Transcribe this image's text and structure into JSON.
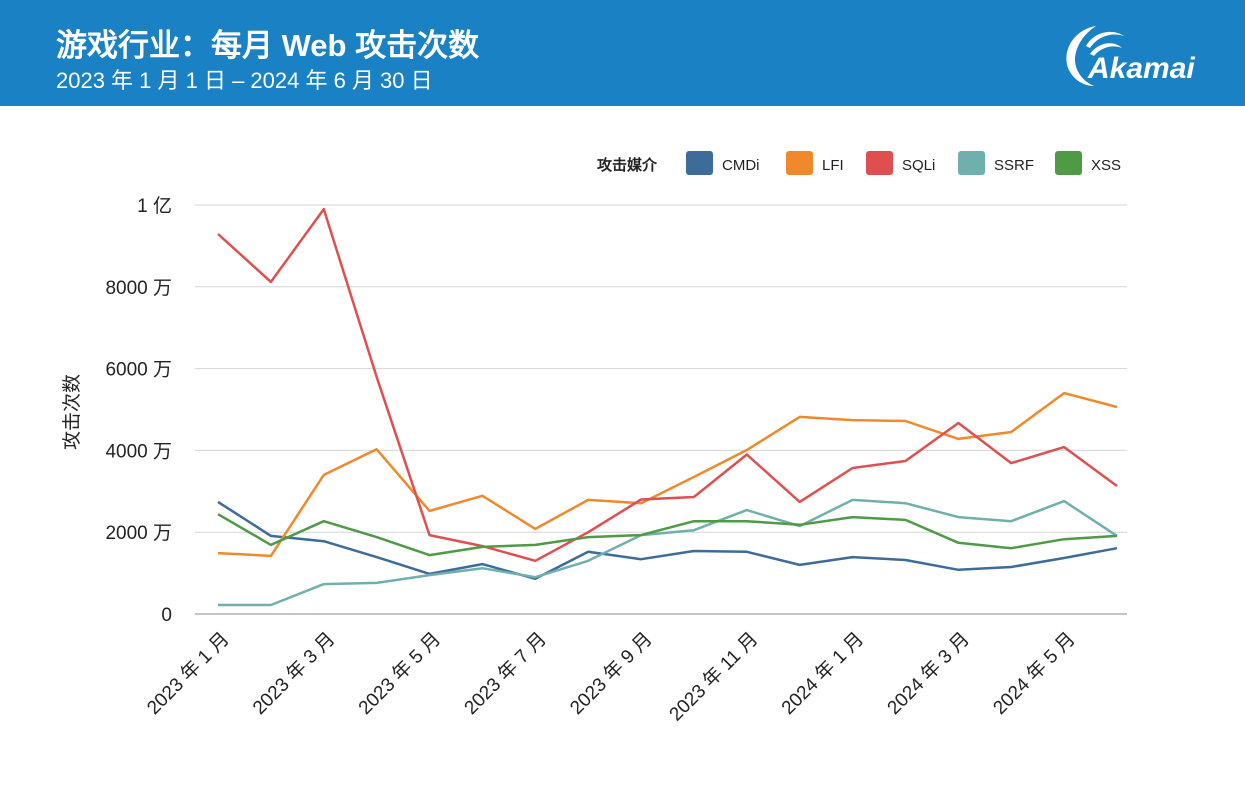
{
  "header": {
    "title": "游戏行业：每月 Web 攻击次数",
    "subtitle": "2023 年 1 月 1 日 – 2024 年 6 月 30 日",
    "logo_text": "Akamai",
    "bg_color": "#1a82c4"
  },
  "chart_data": {
    "type": "line",
    "title": "游戏行业：每月 Web 攻击次数",
    "ylabel": "攻击次数",
    "xlabel": "",
    "ylim": [
      0,
      100000000
    ],
    "yticks": [
      0,
      20000000,
      40000000,
      60000000,
      80000000,
      100000000
    ],
    "ytick_labels": [
      "0",
      "2000 万",
      "4000 万",
      "6000 万",
      "8000 万",
      "1 亿"
    ],
    "x": [
      "2023-01",
      "2023-02",
      "2023-03",
      "2023-04",
      "2023-05",
      "2023-06",
      "2023-07",
      "2023-08",
      "2023-09",
      "2023-10",
      "2023-11",
      "2023-12",
      "2024-01",
      "2024-02",
      "2024-03",
      "2024-04",
      "2024-05",
      "2024-06"
    ],
    "xtick_labels": [
      "2023 年 1 月",
      "",
      "2023 年 3 月",
      "",
      "2023 年 5 月",
      "",
      "2023 年 7 月",
      "",
      "2023 年 9 月",
      "",
      "2023 年 11 月",
      "",
      "2024 年 1 月",
      "",
      "2024 年 3 月",
      "",
      "2024 年 5 月",
      ""
    ],
    "legend_title": "攻击媒介",
    "legend_position": "top-right",
    "grid": true,
    "series": [
      {
        "name": "CMDi",
        "color": "#3d6b9a",
        "values": [
          27.4,
          19.1,
          17.8,
          13.9,
          9.8,
          12.2,
          8.6,
          15.2,
          13.4,
          15.4,
          15.2,
          12.0,
          13.9,
          13.2,
          10.8,
          11.5,
          13.7,
          16.1
        ]
      },
      {
        "name": "LFI",
        "color": "#f0892b",
        "values": [
          14.9,
          14.2,
          34.0,
          40.3,
          25.2,
          28.9,
          20.8,
          27.9,
          27.1,
          33.5,
          40.1,
          48.2,
          47.4,
          47.2,
          42.8,
          44.5,
          54.0,
          50.6
        ]
      },
      {
        "name": "SQLi",
        "color": "#df4f4f",
        "values": [
          92.9,
          81.2,
          99.0,
          58.0,
          19.3,
          16.6,
          13.0,
          20.0,
          28.0,
          28.6,
          39.0,
          27.4,
          35.7,
          37.4,
          46.7,
          36.9,
          40.8,
          31.3
        ]
      },
      {
        "name": "SSRF",
        "color": "#6fb0ad",
        "values": [
          2.2,
          2.2,
          7.3,
          7.6,
          9.5,
          11.2,
          9.0,
          13.0,
          19.3,
          20.5,
          25.4,
          21.5,
          27.9,
          27.1,
          23.7,
          22.7,
          27.6,
          19.1
        ]
      },
      {
        "name": "XSS",
        "color": "#4e9a45",
        "values": [
          24.4,
          16.9,
          22.7,
          18.8,
          14.4,
          16.4,
          16.9,
          18.8,
          19.3,
          22.7,
          22.7,
          21.8,
          23.7,
          23.0,
          17.4,
          16.1,
          18.3,
          19.1
        ]
      }
    ],
    "value_unit": "million"
  }
}
